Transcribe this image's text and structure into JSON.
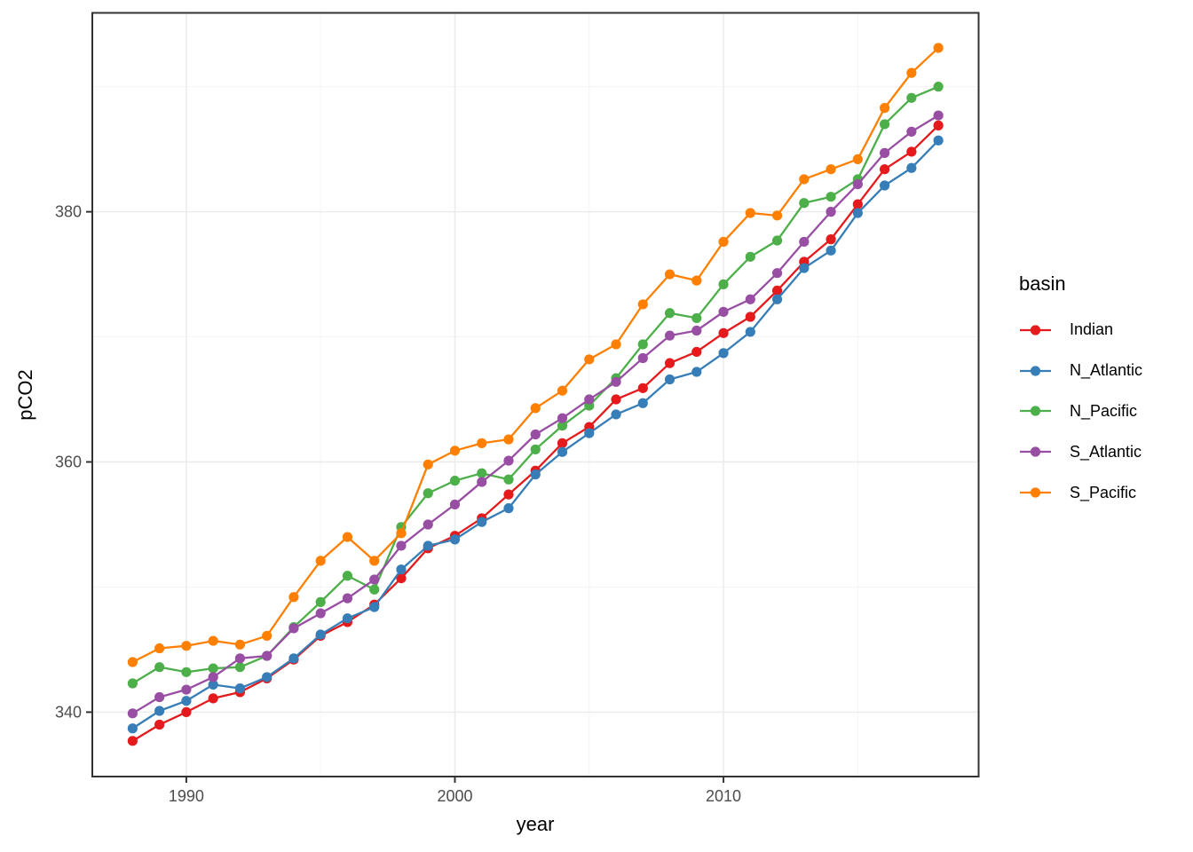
{
  "chart_data": {
    "type": "line",
    "title": "",
    "xlabel": "year",
    "ylabel": "pCO2",
    "legend_title": "basin",
    "legend_position": "right",
    "grid": true,
    "x": [
      1988,
      1989,
      1990,
      1991,
      1992,
      1993,
      1994,
      1995,
      1996,
      1997,
      1998,
      1999,
      2000,
      2001,
      2002,
      2003,
      2004,
      2005,
      2006,
      2007,
      2008,
      2009,
      2010,
      2011,
      2012,
      2013,
      2014,
      2015,
      2016,
      2017,
      2018
    ],
    "series": [
      {
        "name": "Indian",
        "color": "#E41A1C",
        "values": [
          337.7,
          339.0,
          340.0,
          341.1,
          341.6,
          342.7,
          344.2,
          346.1,
          347.2,
          348.6,
          350.7,
          353.1,
          354.1,
          355.5,
          357.4,
          359.3,
          361.5,
          362.8,
          365.0,
          365.9,
          367.9,
          368.8,
          370.3,
          371.6,
          373.7,
          376.0,
          377.8,
          380.6,
          383.4,
          384.8,
          386.9
        ]
      },
      {
        "name": "N_Atlantic",
        "color": "#377EB8",
        "values": [
          338.7,
          340.1,
          340.9,
          342.2,
          341.9,
          342.8,
          344.3,
          346.2,
          347.5,
          348.4,
          351.4,
          353.3,
          353.8,
          355.2,
          356.3,
          359.0,
          360.8,
          362.3,
          363.8,
          364.7,
          366.6,
          367.2,
          368.7,
          370.4,
          373.0,
          375.5,
          376.9,
          379.9,
          382.1,
          383.5,
          385.7
        ]
      },
      {
        "name": "N_Pacific",
        "color": "#4DAF4A",
        "values": [
          342.3,
          343.6,
          343.2,
          343.5,
          343.6,
          344.5,
          346.8,
          348.8,
          350.9,
          349.8,
          354.8,
          357.5,
          358.5,
          359.1,
          358.6,
          361.0,
          362.9,
          364.5,
          366.7,
          369.4,
          371.9,
          371.5,
          374.2,
          376.4,
          377.7,
          380.7,
          381.2,
          382.6,
          387.0,
          389.1,
          390.0
        ]
      },
      {
        "name": "S_Atlantic",
        "color": "#984EA3",
        "values": [
          339.9,
          341.2,
          341.8,
          342.8,
          344.3,
          344.5,
          346.7,
          347.9,
          349.1,
          350.6,
          353.3,
          355.0,
          356.6,
          358.4,
          360.1,
          362.2,
          363.5,
          365.0,
          366.4,
          368.3,
          370.1,
          370.5,
          372.0,
          373.0,
          375.1,
          377.6,
          380.0,
          382.2,
          384.7,
          386.4,
          387.7
        ]
      },
      {
        "name": "S_Pacific",
        "color": "#FF7F00",
        "values": [
          344.0,
          345.1,
          345.3,
          345.7,
          345.4,
          346.1,
          349.2,
          352.1,
          354.0,
          352.1,
          354.3,
          359.8,
          360.9,
          361.5,
          361.8,
          364.3,
          365.7,
          368.2,
          369.4,
          372.6,
          375.0,
          374.5,
          377.6,
          379.9,
          379.7,
          382.6,
          383.4,
          384.2,
          388.3,
          391.1,
          393.1
        ]
      }
    ],
    "x_ticks": [
      1990,
      2000,
      2010
    ],
    "y_ticks": [
      340,
      360,
      380
    ],
    "x_minor_ticks": [
      1995,
      2005,
      2015
    ],
    "y_minor_ticks": [
      350,
      370,
      390
    ],
    "xlim": [
      1986.5,
      2019.5
    ],
    "ylim": [
      334.85,
      395.9
    ],
    "colors": {
      "background": "#FFFFFF",
      "panel_border": "#333333",
      "grid_major": "#EBEBEB",
      "grid_minor": "#F4F4F4",
      "tick_mark": "#333333",
      "tick_label": "#4D4D4D",
      "axis_title": "#000000"
    }
  }
}
